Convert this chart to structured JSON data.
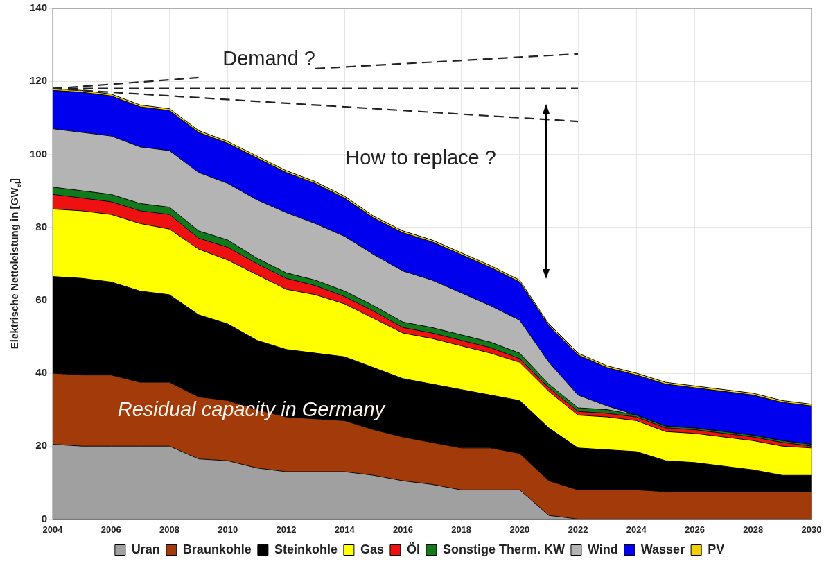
{
  "chart_data": {
    "type": "area",
    "stacked": true,
    "ylabel": "Elektrische Nettoleistung in [GW$_{el}$]",
    "x": [
      2004,
      2005,
      2006,
      2007,
      2008,
      2009,
      2010,
      2011,
      2012,
      2013,
      2014,
      2015,
      2016,
      2017,
      2018,
      2019,
      2020,
      2021,
      2022,
      2023,
      2024,
      2025,
      2026,
      2027,
      2028,
      2029,
      2030
    ],
    "xlim": [
      2004,
      2030
    ],
    "xticks": [
      2004,
      2006,
      2008,
      2010,
      2012,
      2014,
      2016,
      2018,
      2020,
      2022,
      2024,
      2026,
      2028,
      2030
    ],
    "ylim": [
      0,
      140
    ],
    "yticks": [
      0,
      20,
      40,
      60,
      80,
      100,
      120,
      140
    ],
    "grid": true,
    "legend": "bottom",
    "marker": "none",
    "series": [
      {
        "name": "Uran",
        "color": "#a0a0a0",
        "values": [
          20.5,
          20,
          20,
          20,
          20,
          16.5,
          16,
          14,
          13,
          13,
          13,
          12,
          10.5,
          9.5,
          8,
          8,
          8,
          1,
          0,
          0,
          0,
          0,
          0,
          0,
          0,
          0,
          0
        ]
      },
      {
        "name": "Braunkohle",
        "color": "#a33a0a",
        "values": [
          19.5,
          19.5,
          19.5,
          17.5,
          17.5,
          17,
          16.5,
          16,
          15,
          14.5,
          14,
          12.5,
          12,
          11.5,
          11.5,
          11.5,
          10,
          9.5,
          8,
          8,
          8,
          7.5,
          7.5,
          7.5,
          7.5,
          7.5,
          7.5
        ]
      },
      {
        "name": "Steinkohle",
        "color": "#000000",
        "values": [
          26.5,
          26.5,
          25.5,
          25,
          24,
          22.5,
          21,
          19,
          18.5,
          18,
          17.5,
          17,
          16,
          16,
          16,
          14.5,
          14.5,
          14.5,
          11.5,
          11,
          10.5,
          8.5,
          8,
          7,
          6,
          4.5,
          4.5
        ]
      },
      {
        "name": "Gas",
        "color": "#ffff00",
        "values": [
          18.5,
          18.5,
          18.5,
          18.5,
          18,
          18,
          17.5,
          18,
          16.5,
          16,
          14.5,
          13.5,
          12.5,
          12.5,
          12,
          11.5,
          10.5,
          10,
          9,
          9,
          8.5,
          8,
          8,
          8,
          8,
          8,
          7.5
        ]
      },
      {
        "name": "Öl",
        "color": "#ee1111",
        "values": [
          4,
          3.5,
          3.5,
          3.5,
          4,
          3,
          3.5,
          3,
          3,
          2.5,
          2,
          2,
          1.5,
          1.5,
          1.5,
          1.5,
          1,
          1,
          1,
          1,
          1,
          1,
          1,
          1,
          1,
          1,
          0.5
        ]
      },
      {
        "name": "Sonstige Therm. KW",
        "color": "#117a1a",
        "values": [
          2,
          2,
          2,
          2,
          2,
          2,
          2,
          1.5,
          1.5,
          1.5,
          1.5,
          1.5,
          1.5,
          1.5,
          1.5,
          1.5,
          1.5,
          1,
          1,
          1,
          0.5,
          0.5,
          0.5,
          0.5,
          0.5,
          0.5,
          0.5
        ]
      },
      {
        "name": "Wind",
        "color": "#b4b4b4",
        "values": [
          16,
          16,
          16,
          15.5,
          15.5,
          16,
          15.5,
          16,
          16.5,
          15.5,
          15,
          14,
          14,
          13,
          11.5,
          10,
          9,
          6,
          3.5,
          1,
          0,
          0,
          0,
          0,
          0,
          0,
          0
        ]
      },
      {
        "name": "Wasser",
        "color": "#0000ee",
        "values": [
          10.5,
          11,
          11,
          11,
          11,
          11,
          11,
          11.5,
          11,
          11,
          10.5,
          10,
          10.5,
          10.5,
          10.5,
          10.5,
          10.5,
          10,
          11,
          10.5,
          11,
          11.5,
          11,
          11,
          11,
          10.5,
          10.5
        ]
      },
      {
        "name": "PV",
        "color": "#f0d000",
        "values": [
          0.5,
          0.5,
          0.5,
          0.5,
          0.5,
          0.5,
          0.5,
          0.5,
          0.5,
          0.5,
          0.5,
          0.5,
          0.5,
          0.5,
          0.5,
          0.5,
          0.5,
          0.5,
          0.5,
          0.5,
          0.5,
          0.5,
          0.5,
          0.5,
          0.5,
          0.5,
          0.5
        ]
      },
      {
        "type": "line",
        "line_style": "dashed",
        "color": "#222222",
        "x": [
          2004,
          2009,
          2011,
          2013,
          2022
        ],
        "values": [
          118,
          121,
          null,
          123.5,
          127.5
        ]
      },
      {
        "type": "line",
        "line_style": "dashed",
        "color": "#222222",
        "x": [
          2004,
          2022
        ],
        "values": [
          118,
          118
        ]
      },
      {
        "type": "line",
        "line_style": "dashed",
        "color": "#222222",
        "x": [
          2004,
          2022
        ],
        "values": [
          118,
          109
        ]
      }
    ],
    "annotations": [
      "Demand ?",
      "How to replace ?",
      {
        "text": "Residual capacity in Germany",
        "x": 2010.8,
        "y": 29.7
      }
    ]
  }
}
